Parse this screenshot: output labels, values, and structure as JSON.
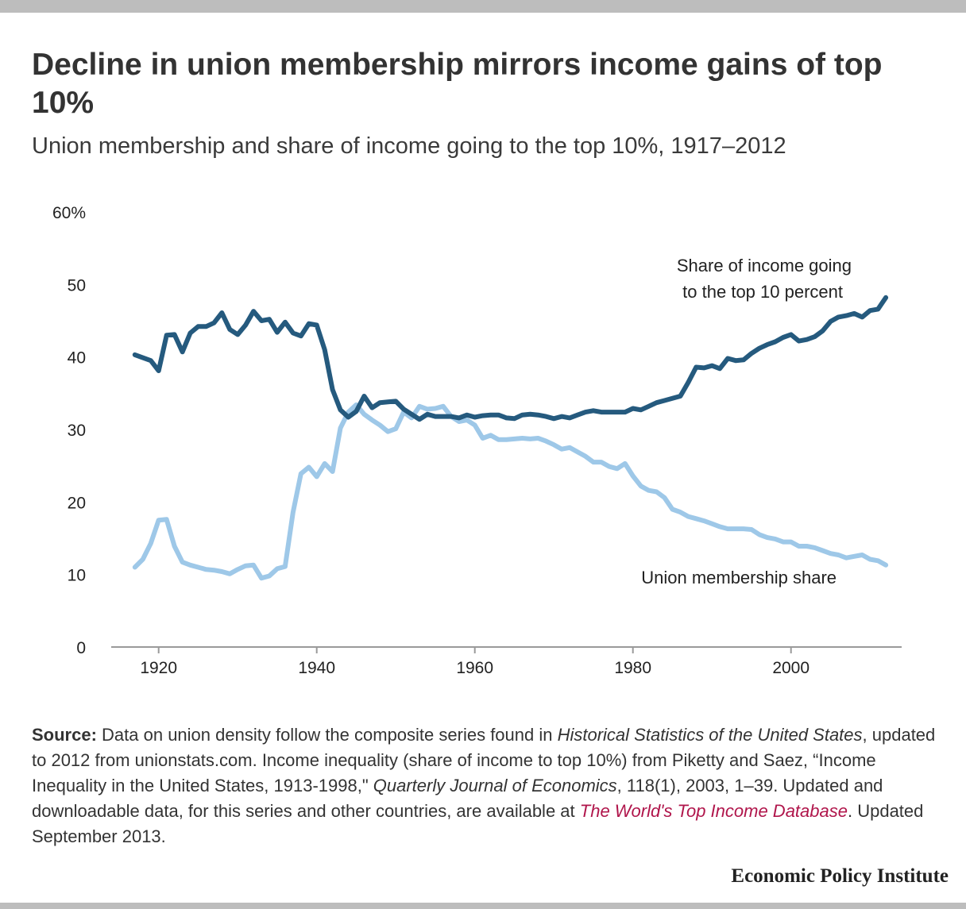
{
  "title": "Decline in union membership mirrors income gains of top 10%",
  "subtitle": "Union membership and share of income going to the top 10%, 1917–2012",
  "source": {
    "lead": "Source:",
    "t1": " Data on union density follow the composite series found in ",
    "i1": "Historical Statistics of the United States",
    "t2": ", updated to 2012 from unionstats.com. Income inequality (share of income to top 10%) from Piketty and Saez, “Income Inequality in the United States, 1913-1998,\" ",
    "i2": "Quarterly Journal of Economics",
    "t3": ", 118(1), 2003, 1–39. Updated and downloadable data, for this series and other countries, are available at ",
    "link": "The World's Top Income Database",
    "t4": ". Updated September 2013."
  },
  "brand": "Economic Policy Institute",
  "colors": {
    "top10": "#255a7e",
    "union": "#9ec8e8",
    "axis": "#9a9a9a",
    "link": "#b0154b"
  },
  "chart_data": {
    "type": "line",
    "title": "",
    "xlabel": "",
    "ylabel": "",
    "xlim": [
      1914,
      2014
    ],
    "ylim": [
      0,
      60
    ],
    "yticks": [
      {
        "value": 0,
        "label": "0"
      },
      {
        "value": 10,
        "label": "10"
      },
      {
        "value": 20,
        "label": "20"
      },
      {
        "value": 30,
        "label": "30"
      },
      {
        "value": 40,
        "label": "40"
      },
      {
        "value": 50,
        "label": "50"
      },
      {
        "value": 60,
        "label": "60%"
      }
    ],
    "xticks": [
      {
        "value": 1920,
        "label": "1920"
      },
      {
        "value": 1940,
        "label": "1940"
      },
      {
        "value": 1960,
        "label": "1960"
      },
      {
        "value": 1980,
        "label": "1980"
      },
      {
        "value": 2000,
        "label": "2000"
      }
    ],
    "grid": false,
    "x": [
      1917,
      1918,
      1919,
      1920,
      1921,
      1922,
      1923,
      1924,
      1925,
      1926,
      1927,
      1928,
      1929,
      1930,
      1931,
      1932,
      1933,
      1934,
      1935,
      1936,
      1937,
      1938,
      1939,
      1940,
      1941,
      1942,
      1943,
      1944,
      1945,
      1946,
      1947,
      1948,
      1949,
      1950,
      1951,
      1952,
      1953,
      1954,
      1955,
      1956,
      1957,
      1958,
      1959,
      1960,
      1961,
      1962,
      1963,
      1964,
      1965,
      1966,
      1967,
      1968,
      1969,
      1970,
      1971,
      1972,
      1973,
      1974,
      1975,
      1976,
      1977,
      1978,
      1979,
      1980,
      1981,
      1982,
      1983,
      1984,
      1985,
      1986,
      1987,
      1988,
      1989,
      1990,
      1991,
      1992,
      1993,
      1994,
      1995,
      1996,
      1997,
      1998,
      1999,
      2000,
      2001,
      2002,
      2003,
      2004,
      2005,
      2006,
      2007,
      2008,
      2009,
      2010,
      2011,
      2012
    ],
    "series": [
      {
        "name": "Share of income going to the top 10 percent",
        "values": [
          40.3,
          39.9,
          39.5,
          38.1,
          43.0,
          43.1,
          40.7,
          43.3,
          44.2,
          44.2,
          44.7,
          46.1,
          43.8,
          43.1,
          44.4,
          46.3,
          45.0,
          45.2,
          43.4,
          44.8,
          43.3,
          42.9,
          44.6,
          44.4,
          41.0,
          35.5,
          32.7,
          31.7,
          32.5,
          34.6,
          33.0,
          33.7,
          33.8,
          33.9,
          32.8,
          32.1,
          31.4,
          32.1,
          31.8,
          31.8,
          31.8,
          31.6,
          32.0,
          31.7,
          31.9,
          32.0,
          32.0,
          31.6,
          31.5,
          32.0,
          32.1,
          32.0,
          31.8,
          31.5,
          31.8,
          31.6,
          32.0,
          32.4,
          32.6,
          32.4,
          32.4,
          32.4,
          32.4,
          32.9,
          32.7,
          33.2,
          33.7,
          34.0,
          34.3,
          34.6,
          36.5,
          38.6,
          38.5,
          38.8,
          38.4,
          39.8,
          39.5,
          39.6,
          40.5,
          41.2,
          41.7,
          42.1,
          42.7,
          43.1,
          42.2,
          42.4,
          42.8,
          43.6,
          44.9,
          45.5,
          45.7,
          46.0,
          45.5,
          46.4,
          46.6,
          48.2
        ]
      },
      {
        "name": "Union membership share",
        "values": [
          11.0,
          12.1,
          14.3,
          17.5,
          17.6,
          13.9,
          11.7,
          11.3,
          11.0,
          10.7,
          10.6,
          10.4,
          10.1,
          10.7,
          11.2,
          11.3,
          9.5,
          9.8,
          10.8,
          11.1,
          18.6,
          23.9,
          24.8,
          23.5,
          25.3,
          24.2,
          30.2,
          32.4,
          33.4,
          32.1,
          31.3,
          30.6,
          29.7,
          30.1,
          32.4,
          31.6,
          33.2,
          32.8,
          32.9,
          33.2,
          31.8,
          31.1,
          31.3,
          30.6,
          28.8,
          29.2,
          28.6,
          28.6,
          28.7,
          28.8,
          28.7,
          28.8,
          28.4,
          27.9,
          27.3,
          27.5,
          26.9,
          26.3,
          25.5,
          25.5,
          24.9,
          24.6,
          25.3,
          23.6,
          22.2,
          21.6,
          21.4,
          20.6,
          19.0,
          18.6,
          18.0,
          17.7,
          17.4,
          17.0,
          16.6,
          16.3,
          16.3,
          16.3,
          16.2,
          15.5,
          15.1,
          14.9,
          14.5,
          14.5,
          13.9,
          13.9,
          13.7,
          13.3,
          12.9,
          12.7,
          12.3,
          12.5,
          12.7,
          12.1,
          11.9,
          11.3
        ]
      }
    ],
    "annotations": {
      "top10_line1": "Share of income going",
      "top10_line2": "to the top 10 percent",
      "union": "Union membership share"
    }
  }
}
